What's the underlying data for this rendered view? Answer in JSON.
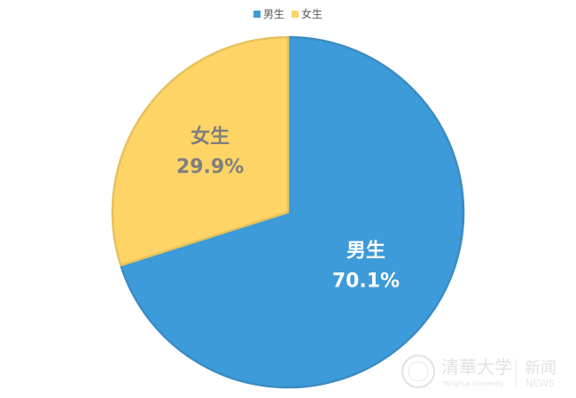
{
  "chart_data": {
    "type": "pie",
    "title": "",
    "start_angle": "12 o'clock",
    "direction": "clockwise",
    "legend_position": "top",
    "slices": [
      {
        "name": "男生",
        "value": 70.1,
        "label": "70.1%",
        "color": "#3c9bd8",
        "label_color": "#ffffff"
      },
      {
        "name": "女生",
        "value": 29.9,
        "label": "29.9%",
        "color": "#fed467",
        "label_color": "#7f7f7f"
      }
    ]
  },
  "watermark": {
    "text": "清华大学 Tsinghua University | 新闻 NEWS"
  }
}
